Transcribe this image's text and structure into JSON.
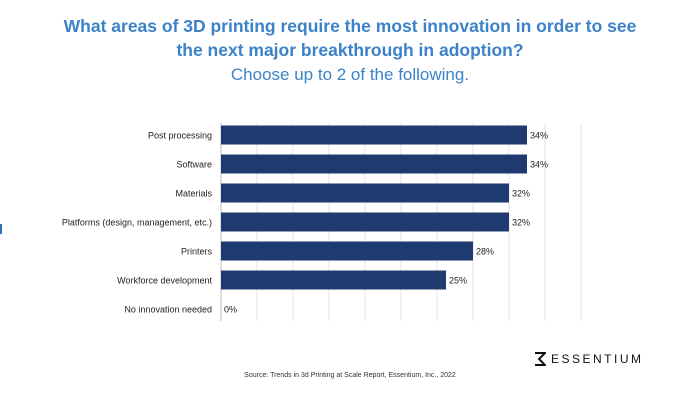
{
  "header": {
    "title_line1": "What areas of 3D printing require the most innovation in order to see",
    "title_line2": "the next major breakthrough in adoption?",
    "subtitle": "Choose up to 2 of the following."
  },
  "chart_data": {
    "type": "bar",
    "orientation": "horizontal",
    "categories": [
      "Post processing",
      "Software",
      "Materials",
      "Platforms (design, management, etc.)",
      "Printers",
      "Workforce development",
      "No innovation needed"
    ],
    "values": [
      34,
      34,
      32,
      32,
      28,
      25,
      0
    ],
    "value_labels": [
      "34%",
      "34%",
      "32%",
      "32%",
      "28%",
      "25%",
      "0%"
    ],
    "unit": "%",
    "xlim": [
      0,
      40
    ],
    "grid": "vertical",
    "bar_color": "#1f3a6e"
  },
  "footer": {
    "source": "Source: Trends in 3d Printing at Scale Report, Essentium, Inc., 2022",
    "brand": "ESSENTIUM"
  },
  "colors": {
    "title": "#3b82c8",
    "bar": "#1f3a6e",
    "grid": "#e3e3e3"
  }
}
